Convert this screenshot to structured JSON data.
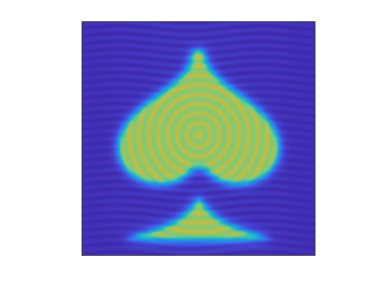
{
  "figure": {
    "background": "#ffffff",
    "axes_frame_color": "#262626"
  },
  "image": {
    "subject": "spade-icon",
    "colormap": "parula",
    "colormap_stops": [
      "#3e26a8",
      "#4648d6",
      "#2b82f5",
      "#13b9c9",
      "#70cc84",
      "#d9b92f",
      "#fde725"
    ],
    "ticks_visible": false,
    "axis_labels_visible": false,
    "colorbar_visible": false
  }
}
